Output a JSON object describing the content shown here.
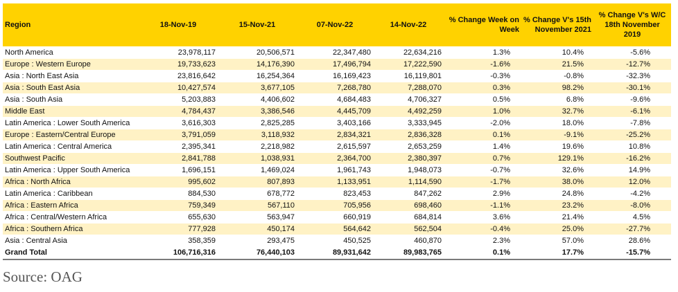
{
  "table": {
    "headers": {
      "region": "Region",
      "y2019": "18-Nov-19",
      "y2021": "15-Nov-21",
      "y2022a": "07-Nov-22",
      "y2022b": "14-Nov-22",
      "pct_week": "% Change Week on Week",
      "pct_2021": "% Change V's 15th November 2021",
      "pct_2019": "% Change V's W/C 18th November 2019"
    },
    "rows": [
      {
        "region": "North America",
        "y2019": "23,978,117",
        "y2021": "20,506,571",
        "y2022a": "22,347,480",
        "y2022b": "22,634,216",
        "pct_week": "1.3%",
        "pct_2021": "10.4%",
        "pct_2019": "-5.6%"
      },
      {
        "region": "Europe : Western Europe",
        "y2019": "19,733,623",
        "y2021": "14,176,390",
        "y2022a": "17,496,794",
        "y2022b": "17,222,590",
        "pct_week": "-1.6%",
        "pct_2021": "21.5%",
        "pct_2019": "-12.7%"
      },
      {
        "region": "Asia : North East Asia",
        "y2019": "23,816,642",
        "y2021": "16,254,364",
        "y2022a": "16,169,423",
        "y2022b": "16,119,801",
        "pct_week": "-0.3%",
        "pct_2021": "-0.8%",
        "pct_2019": "-32.3%"
      },
      {
        "region": "Asia : South East Asia",
        "y2019": "10,427,574",
        "y2021": "3,677,105",
        "y2022a": "7,268,780",
        "y2022b": "7,288,070",
        "pct_week": "0.3%",
        "pct_2021": "98.2%",
        "pct_2019": "-30.1%"
      },
      {
        "region": "Asia : South Asia",
        "y2019": "5,203,883",
        "y2021": "4,406,602",
        "y2022a": "4,684,483",
        "y2022b": "4,706,327",
        "pct_week": "0.5%",
        "pct_2021": "6.8%",
        "pct_2019": "-9.6%"
      },
      {
        "region": "Middle East",
        "y2019": "4,784,437",
        "y2021": "3,386,546",
        "y2022a": "4,445,709",
        "y2022b": "4,492,259",
        "pct_week": "1.0%",
        "pct_2021": "32.7%",
        "pct_2019": "-6.1%"
      },
      {
        "region": "Latin America : Lower South America",
        "y2019": "3,616,303",
        "y2021": "2,825,285",
        "y2022a": "3,403,166",
        "y2022b": "3,333,945",
        "pct_week": "-2.0%",
        "pct_2021": "18.0%",
        "pct_2019": "-7.8%"
      },
      {
        "region": "Europe : Eastern/Central Europe",
        "y2019": "3,791,059",
        "y2021": "3,118,932",
        "y2022a": "2,834,321",
        "y2022b": "2,836,328",
        "pct_week": "0.1%",
        "pct_2021": "-9.1%",
        "pct_2019": "-25.2%"
      },
      {
        "region": "Latin America : Central America",
        "y2019": "2,395,341",
        "y2021": "2,218,982",
        "y2022a": "2,615,597",
        "y2022b": "2,653,259",
        "pct_week": "1.4%",
        "pct_2021": "19.6%",
        "pct_2019": "10.8%"
      },
      {
        "region": "Southwest Pacific",
        "y2019": "2,841,788",
        "y2021": "1,038,931",
        "y2022a": "2,364,700",
        "y2022b": "2,380,397",
        "pct_week": "0.7%",
        "pct_2021": "129.1%",
        "pct_2019": "-16.2%"
      },
      {
        "region": "Latin America : Upper South America",
        "y2019": "1,696,151",
        "y2021": "1,469,024",
        "y2022a": "1,961,743",
        "y2022b": "1,948,073",
        "pct_week": "-0.7%",
        "pct_2021": "32.6%",
        "pct_2019": "14.9%"
      },
      {
        "region": "Africa : North Africa",
        "y2019": "995,602",
        "y2021": "807,893",
        "y2022a": "1,133,951",
        "y2022b": "1,114,590",
        "pct_week": "-1.7%",
        "pct_2021": "38.0%",
        "pct_2019": "12.0%"
      },
      {
        "region": "Latin America : Caribbean",
        "y2019": "884,530",
        "y2021": "678,772",
        "y2022a": "823,453",
        "y2022b": "847,262",
        "pct_week": "2.9%",
        "pct_2021": "24.8%",
        "pct_2019": "-4.2%"
      },
      {
        "region": "Africa : Eastern Africa",
        "y2019": "759,349",
        "y2021": "567,110",
        "y2022a": "705,956",
        "y2022b": "698,460",
        "pct_week": "-1.1%",
        "pct_2021": "23.2%",
        "pct_2019": "-8.0%"
      },
      {
        "region": "Africa : Central/Western Africa",
        "y2019": "655,630",
        "y2021": "563,947",
        "y2022a": "660,919",
        "y2022b": "684,814",
        "pct_week": "3.6%",
        "pct_2021": "21.4%",
        "pct_2019": "4.5%"
      },
      {
        "region": "Africa : Southern Africa",
        "y2019": "777,928",
        "y2021": "450,174",
        "y2022a": "564,642",
        "y2022b": "562,504",
        "pct_week": "-0.4%",
        "pct_2021": "25.0%",
        "pct_2019": "-27.7%"
      },
      {
        "region": "Asia : Central Asia",
        "y2019": "358,359",
        "y2021": "293,475",
        "y2022a": "450,525",
        "y2022b": "460,870",
        "pct_week": "2.3%",
        "pct_2021": "57.0%",
        "pct_2019": "28.6%"
      }
    ],
    "total": {
      "region": "Grand Total",
      "y2019": "106,716,316",
      "y2021": "76,440,103",
      "y2022a": "89,931,642",
      "y2022b": "89,983,765",
      "pct_week": "0.1%",
      "pct_2021": "17.7%",
      "pct_2019": "-15.7%"
    }
  },
  "source": "Source: OAG",
  "colors": {
    "header_bg": "#ffd200",
    "band_cream": "#fff2c5",
    "band_white": "#ffffff"
  }
}
